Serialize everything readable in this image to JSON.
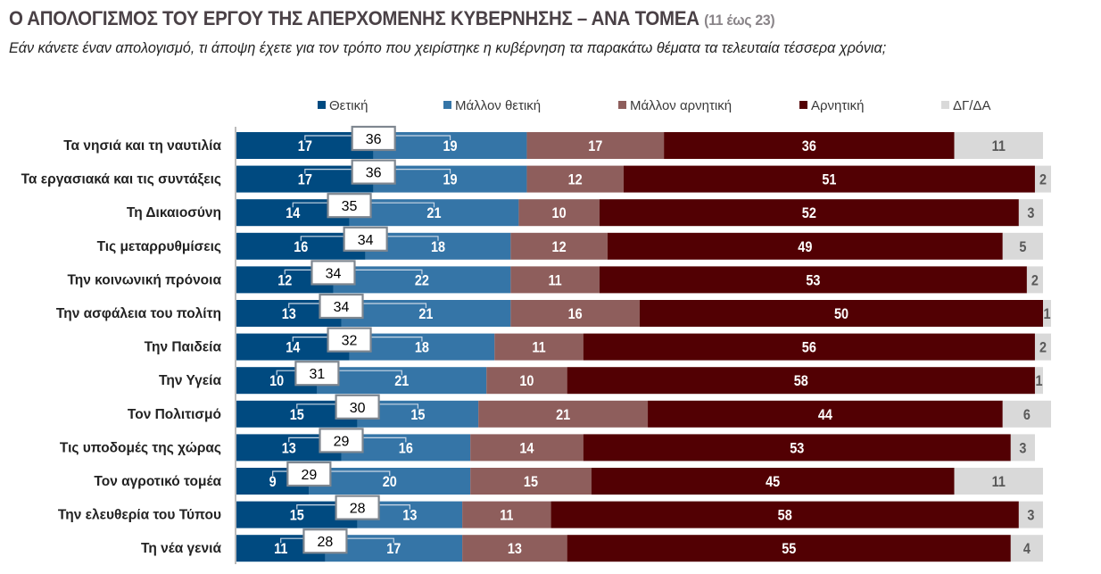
{
  "header": {
    "title": "Ο ΑΠΟΛΟΓΙΣΜΟΣ ΤΟΥ ΕΡΓΟΥ ΤΗΣ ΑΠΕΡΧΟΜΕΝΗΣ ΚΥΒΕΡΝΗΣΗΣ – ΑΝΑ ΤΟΜΕΑ",
    "title_note": "(11 έως 23)",
    "subtitle": "Εάν κάνετε έναν απολογισμό, τι άποψη έχετε για τον τρόπο που χειρίστηκε η κυβέρνηση τα παρακάτω θέματα τα τελευταία τέσσερα χρόνια;"
  },
  "chart_data": {
    "type": "bar",
    "orientation": "horizontal",
    "stacked": true,
    "title": "Ο ΑΠΟΛΟΓΙΣΜΟΣ ΤΟΥ ΕΡΓΟΥ ΤΗΣ ΑΠΕΡΧΟΜΕΝΗΣ ΚΥΒΕΡΝΗΣΗΣ – ΑΝΑ ΤΟΜΕΑ (11 έως 23)",
    "xlabel": "",
    "ylabel": "",
    "xlim": [
      0,
      100
    ],
    "grid": false,
    "legend_position": "top",
    "categories": [
      "Τα νησιά και τη ναυτιλία",
      "Τα εργασιακά και τις συντάξεις",
      "Τη Δικαιοσύνη",
      "Τις μεταρρυθμίσεις",
      "Την κοινωνική πρόνοια",
      "Την ασφάλεια του πολίτη",
      "Την Παιδεία",
      "Την Υγεία",
      "Τον Πολιτισμό",
      "Τις υποδομές της χώρας",
      "Τον αγροτικό τομέα",
      "Την ελευθερία του Τύπου",
      "Τη νέα γενιά"
    ],
    "series": [
      {
        "name": "Θετική",
        "color": "#004A80",
        "values": [
          17,
          17,
          14,
          16,
          12,
          13,
          14,
          10,
          15,
          13,
          9,
          15,
          11
        ]
      },
      {
        "name": "Μάλλον θετική",
        "color": "#3575A7",
        "values": [
          19,
          19,
          21,
          18,
          22,
          21,
          18,
          21,
          15,
          16,
          20,
          13,
          17
        ]
      },
      {
        "name": "Μάλλον αρνητική",
        "color": "#8E5E5C",
        "values": [
          17,
          12,
          10,
          12,
          11,
          16,
          11,
          10,
          21,
          14,
          15,
          11,
          13
        ]
      },
      {
        "name": "Αρνητική",
        "color": "#520003",
        "values": [
          36,
          51,
          52,
          49,
          53,
          50,
          56,
          58,
          44,
          53,
          45,
          58,
          55
        ]
      },
      {
        "name": "ΔΓ/ΔΑ",
        "color": "#D9D9D9",
        "values": [
          11,
          2,
          3,
          5,
          2,
          1,
          2,
          1,
          6,
          3,
          11,
          3,
          4
        ]
      }
    ],
    "positive_totals": {
      "label": "Θετική + Μάλλον θετική",
      "values": [
        36,
        36,
        35,
        34,
        34,
        34,
        32,
        31,
        30,
        29,
        29,
        28,
        28
      ]
    }
  }
}
